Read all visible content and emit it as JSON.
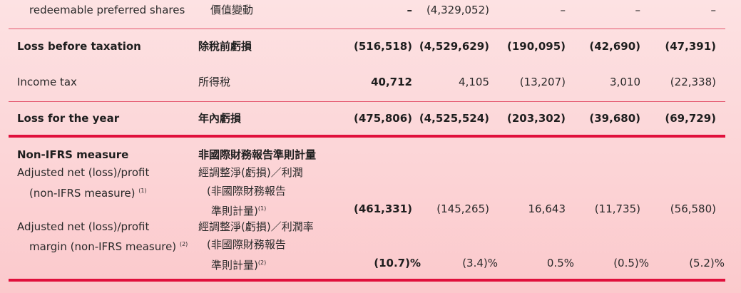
{
  "rows": [
    {
      "en": "redeemable preferred shares",
      "zh": "價值變動",
      "values": [
        "–",
        "(4,329,052)",
        "–",
        "–",
        "–"
      ]
    },
    {
      "en": "Loss before taxation",
      "zh": "除稅前虧損",
      "values": [
        "(516,518)",
        "(4,529,629)",
        "(190,095)",
        "(42,690)",
        "(47,391)"
      ]
    },
    {
      "en": "Income tax",
      "zh": "所得稅",
      "values": [
        "40,712",
        "4,105",
        "(13,207)",
        "3,010",
        "(22,338)"
      ]
    },
    {
      "en": "Loss for the year",
      "zh": "年內虧損",
      "values": [
        "(475,806)",
        "(4,525,524)",
        "(203,302)",
        "(39,680)",
        "(69,729)"
      ]
    }
  ],
  "nonifrs": {
    "heading_en": "Non-IFRS measure",
    "heading_zh": "非國際財務報告準則計量",
    "adj_net": {
      "en1": "Adjusted net (loss)/profit",
      "en2": "(non-IFRS measure)",
      "note": "(1)",
      "zh1": "經調整淨(虧損)／利潤",
      "zh2": "(非國際財務報告",
      "zh3": "準則計量)",
      "values": [
        "(461,331)",
        "(145,265)",
        "16,643",
        "(11,735)",
        "(56,580)"
      ]
    },
    "adj_margin": {
      "en1": "Adjusted net (loss)/profit",
      "en2": "margin (non-IFRS measure)",
      "note": "(2)",
      "zh1": "經調整淨(虧損)／利潤率",
      "zh2": "(非國際財務報告",
      "zh3": "準則計量)",
      "values": [
        "(10.7)%",
        "(3.4)%",
        "0.5%",
        "(0.5)%",
        "(5.2)%"
      ]
    }
  },
  "colors": {
    "rule": "#e0103c",
    "background": "#fcd6d8"
  }
}
